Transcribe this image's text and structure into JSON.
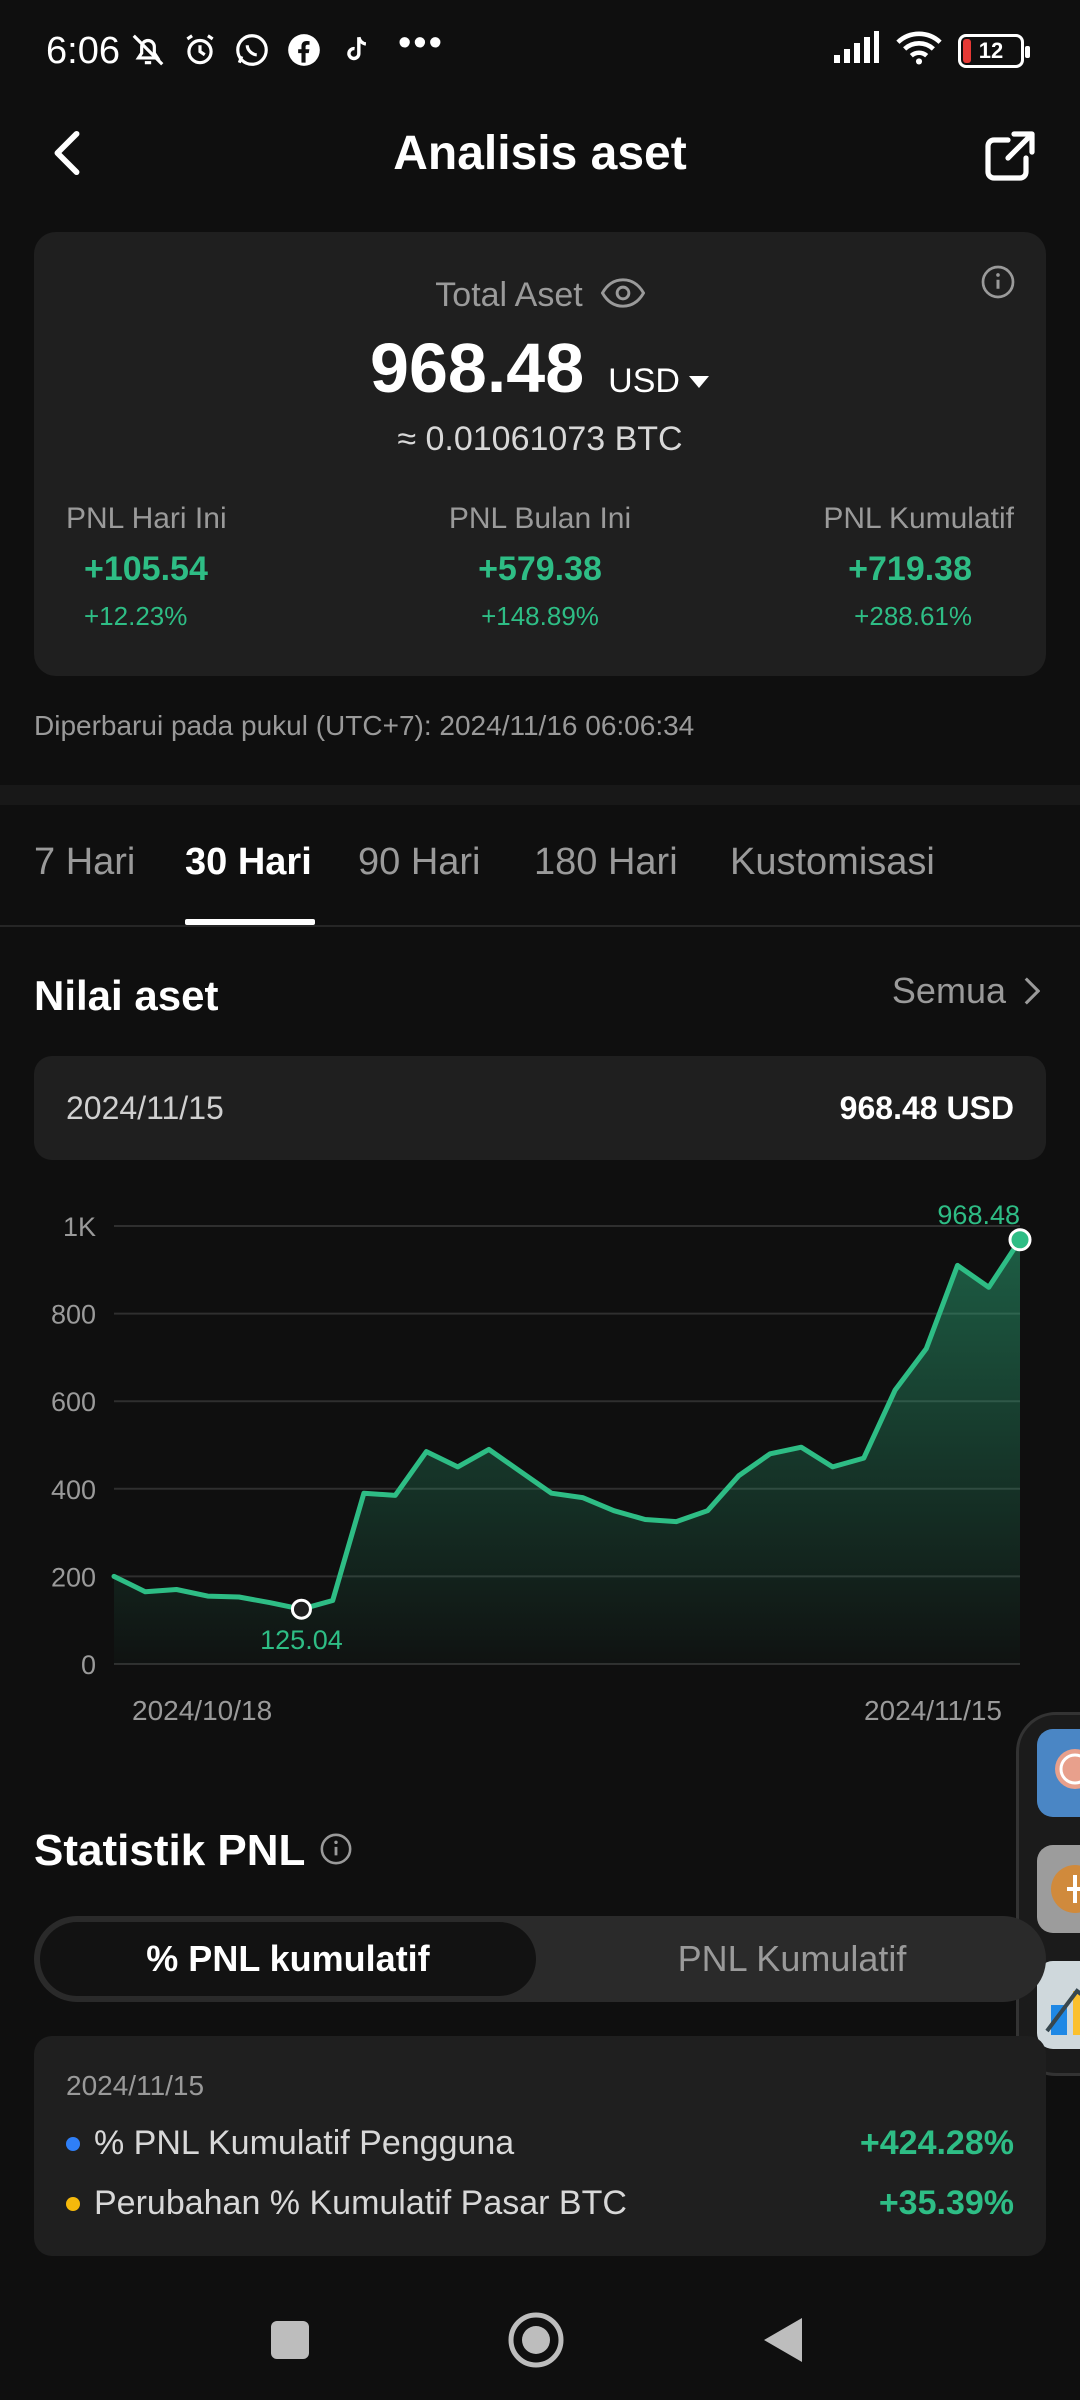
{
  "status_bar": {
    "time": "6:06",
    "dots": "•••",
    "battery": "12",
    "icons": [
      "mute-bell-icon",
      "alarm-icon",
      "whatsapp-icon",
      "facebook-icon",
      "tiktok-icon",
      "signal-icon",
      "wifi-icon",
      "battery-icon"
    ]
  },
  "header": {
    "title": "Analisis aset"
  },
  "summary": {
    "total_label": "Total Aset",
    "total_value": "968.48",
    "currency": "USD",
    "btc_equiv": "≈ 0.01061073 BTC",
    "pnl": [
      {
        "label": "PNL Hari Ini",
        "value": "+105.54",
        "pct": "+12.23%"
      },
      {
        "label": "PNL Bulan Ini",
        "value": "+579.38",
        "pct": "+148.89%"
      },
      {
        "label": "PNL Kumulatif",
        "value": "+719.38",
        "pct": "+288.61%"
      }
    ]
  },
  "updated_text": "Diperbarui pada pukul (UTC+7): 2024/11/16 06:06:34",
  "tabs": [
    "7 Hari",
    "30 Hari",
    "90 Hari",
    "180 Hari",
    "Kustomisasi"
  ],
  "active_tab": "30 Hari",
  "asset_section": {
    "title": "Nilai aset",
    "all_link": "Semua",
    "selected_date": "2024/11/15",
    "selected_value": "968.48 USD"
  },
  "chart_data": {
    "type": "area",
    "y_tick_labels": [
      "0",
      "200",
      "400",
      "600",
      "800",
      "1K"
    ],
    "y_ticks": [
      0,
      200,
      400,
      600,
      800,
      1000
    ],
    "ylim": [
      0,
      1000
    ],
    "x_tick_labels": [
      "2024/10/18",
      "2024/11/15"
    ],
    "x_start": "2024/10/18",
    "x_end": "2024/11/15",
    "series": [
      {
        "values": [
          200,
          165,
          170,
          155,
          153,
          140,
          125.04,
          145,
          390,
          385,
          485,
          450,
          490,
          440,
          390,
          380,
          350,
          330,
          325,
          350,
          430,
          480,
          495,
          450,
          470,
          625,
          720,
          910,
          860,
          968.48
        ]
      }
    ],
    "min_label": "125.04",
    "min_index": 6,
    "max_label": "968.48",
    "max_index": 29,
    "line_color": "#2ebd85",
    "grid": true
  },
  "stats": {
    "title": "Statistik PNL",
    "seg_active": "% PNL kumulatif",
    "seg_inactive": "PNL Kumulatif",
    "date": "2024/11/15",
    "rows": [
      {
        "label": "% PNL Kumulatif Pengguna",
        "value": "+424.28%",
        "dot_color": "#2f7ff7"
      },
      {
        "label": "Perubahan % Kumulatif Pasar BTC",
        "value": "+35.39%",
        "dot_color": "#f5b90c"
      }
    ]
  },
  "colors": {
    "positive": "#2ebd85",
    "background": "#0f0f0f",
    "card": "#1f1f1f"
  }
}
